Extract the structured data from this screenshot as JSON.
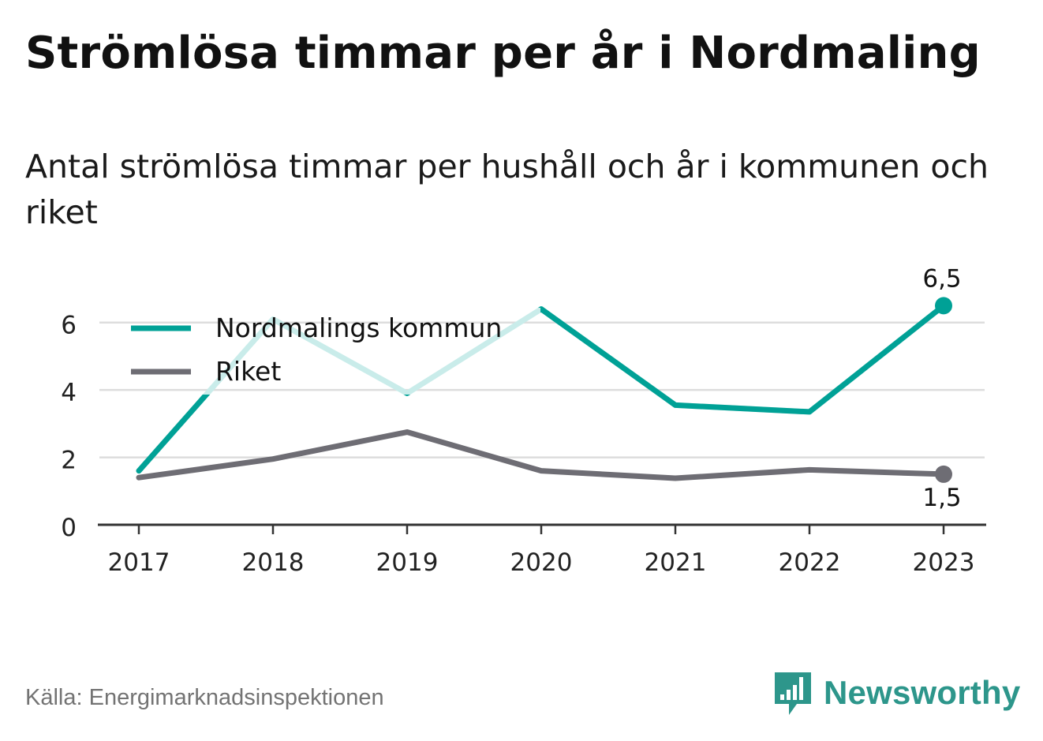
{
  "title": "Strömlösa timmar per år i Nordmaling",
  "subtitle": "Antal strömlösa timmar per hushåll och år i kommunen och riket",
  "source": "Källa: Energimarknadsinspektionen",
  "logo_text": "Newsworthy",
  "colors": {
    "kommun": "#00a196",
    "kommun_faded": "#c9ecea",
    "riket": "#6e6d74",
    "grid": "#dddddd",
    "axis": "#333333",
    "logo": "#2d968b"
  },
  "chart_data": {
    "type": "line",
    "x": [
      "2017",
      "2018",
      "2019",
      "2020",
      "2021",
      "2022",
      "2023"
    ],
    "ylim": [
      0,
      7
    ],
    "yticks": [
      "0",
      "2",
      "4",
      "6"
    ],
    "grid": true,
    "legend_position": "top-left",
    "series": [
      {
        "name": "Nordmalings kommun",
        "values": [
          1.6,
          6.1,
          3.9,
          6.4,
          3.55,
          3.35,
          6.5
        ],
        "end_label": "6,5"
      },
      {
        "name": "Riket",
        "values": [
          1.4,
          1.95,
          2.75,
          1.6,
          1.38,
          1.63,
          1.5
        ],
        "end_label": "1,5"
      }
    ]
  }
}
